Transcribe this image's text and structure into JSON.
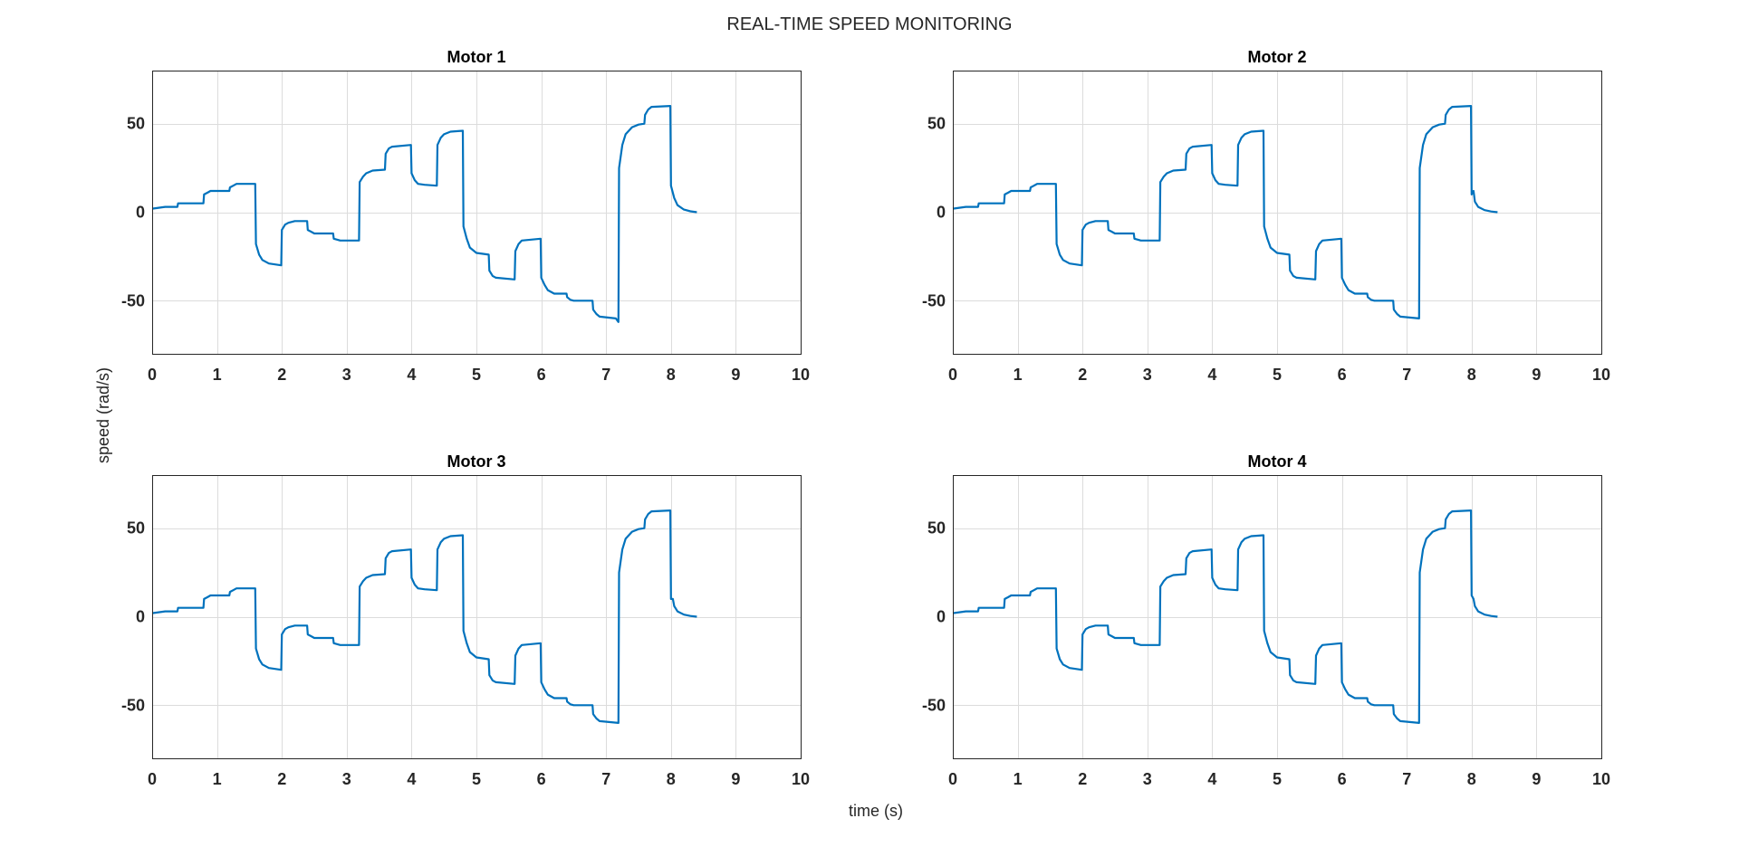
{
  "figure": {
    "title": "REAL-TIME SPEED MONITORING",
    "xlabel": "time (s)",
    "ylabel": "speed (rad/s)"
  },
  "colors": {
    "series": "#0072BD"
  },
  "chart_data": [
    {
      "type": "line",
      "title": "Motor 1",
      "xlim": [
        0,
        10
      ],
      "ylim": [
        -80,
        80
      ],
      "xticks": [
        0,
        1,
        2,
        3,
        4,
        5,
        6,
        7,
        8,
        9,
        10
      ],
      "yticks": [
        -50,
        0,
        50
      ],
      "xtick_labels": [
        "0",
        "1",
        "2",
        "3",
        "4",
        "5",
        "6",
        "7",
        "8",
        "9",
        "10"
      ],
      "ytick_labels": [
        "-50",
        "0",
        "50"
      ],
      "grid": true,
      "series": [
        {
          "x": [
            0,
            0.2,
            0.39,
            0.4,
            0.79,
            0.8,
            0.85,
            0.9,
            1.19,
            1.2,
            1.25,
            1.3,
            1.59,
            1.6,
            1.65,
            1.7,
            1.8,
            1.99,
            2.0,
            2.05,
            2.1,
            2.2,
            2.39,
            2.4,
            2.45,
            2.5,
            2.79,
            2.8,
            2.85,
            2.9,
            3.19,
            3.2,
            3.25,
            3.3,
            3.4,
            3.59,
            3.6,
            3.65,
            3.7,
            3.99,
            4.0,
            4.05,
            4.1,
            4.2,
            4.39,
            4.4,
            4.45,
            4.5,
            4.6,
            4.79,
            4.8,
            4.85,
            4.9,
            5.0,
            5.19,
            5.2,
            5.25,
            5.3,
            5.59,
            5.6,
            5.65,
            5.7,
            5.99,
            6.0,
            6.05,
            6.1,
            6.2,
            6.39,
            6.4,
            6.45,
            6.5,
            6.79,
            6.8,
            6.85,
            6.9,
            7.15,
            7.19,
            7.2,
            7.25,
            7.3,
            7.4,
            7.5,
            7.59,
            7.6,
            7.65,
            7.7,
            7.99,
            8.0,
            8.05,
            8.1,
            8.2,
            8.3,
            8.4
          ],
          "y": [
            2,
            3,
            3,
            5,
            5,
            10,
            11,
            12,
            12,
            14,
            15,
            16,
            16,
            -18,
            -24,
            -27,
            -29,
            -30,
            -10,
            -7,
            -6,
            -5,
            -5,
            -10,
            -11,
            -12,
            -12,
            -15,
            -15.5,
            -16,
            -16,
            17,
            20,
            22,
            23.5,
            24,
            33,
            36,
            37,
            38,
            22,
            18,
            16,
            15.5,
            15,
            38,
            42,
            44,
            45.5,
            46,
            -8,
            -15,
            -20,
            -23,
            -24,
            -33,
            -36,
            -37,
            -38,
            -22,
            -18,
            -16,
            -15,
            -37,
            -41,
            -44,
            -46,
            -46,
            -48,
            -49.5,
            -50,
            -50,
            -55,
            -57.5,
            -59,
            -60,
            -62,
            25,
            38,
            44,
            48,
            49.5,
            50,
            55,
            58,
            59.5,
            60,
            15,
            8,
            4,
            1.5,
            0.5,
            0
          ]
        }
      ]
    },
    {
      "type": "line",
      "title": "Motor 2",
      "xlim": [
        0,
        10
      ],
      "ylim": [
        -80,
        80
      ],
      "xticks": [
        0,
        1,
        2,
        3,
        4,
        5,
        6,
        7,
        8,
        9,
        10
      ],
      "yticks": [
        -50,
        0,
        50
      ],
      "xtick_labels": [
        "0",
        "1",
        "2",
        "3",
        "4",
        "5",
        "6",
        "7",
        "8",
        "9",
        "10"
      ],
      "ytick_labels": [
        "-50",
        "0",
        "50"
      ],
      "grid": true,
      "series": [
        {
          "x": [
            0,
            0.2,
            0.39,
            0.4,
            0.79,
            0.8,
            0.85,
            0.9,
            1.19,
            1.2,
            1.25,
            1.3,
            1.59,
            1.6,
            1.65,
            1.7,
            1.8,
            1.99,
            2.0,
            2.05,
            2.1,
            2.2,
            2.39,
            2.4,
            2.45,
            2.5,
            2.79,
            2.8,
            2.85,
            2.9,
            3.19,
            3.2,
            3.25,
            3.3,
            3.4,
            3.59,
            3.6,
            3.65,
            3.7,
            3.99,
            4.0,
            4.05,
            4.1,
            4.2,
            4.39,
            4.4,
            4.45,
            4.5,
            4.6,
            4.79,
            4.8,
            4.85,
            4.9,
            5.0,
            5.19,
            5.2,
            5.25,
            5.3,
            5.59,
            5.6,
            5.65,
            5.7,
            5.99,
            6.0,
            6.05,
            6.1,
            6.2,
            6.39,
            6.4,
            6.45,
            6.5,
            6.79,
            6.8,
            6.85,
            6.9,
            7.19,
            7.2,
            7.25,
            7.3,
            7.4,
            7.5,
            7.59,
            7.6,
            7.65,
            7.7,
            7.99,
            8.0,
            8.03,
            8.05,
            8.1,
            8.2,
            8.3,
            8.4
          ],
          "y": [
            2,
            3,
            3,
            5,
            5,
            10,
            11,
            12,
            12,
            14,
            15,
            16,
            16,
            -18,
            -24,
            -27,
            -29,
            -30,
            -10,
            -7,
            -6,
            -5,
            -5,
            -10,
            -11,
            -12,
            -12,
            -15,
            -15.5,
            -16,
            -16,
            17,
            20,
            22,
            23.5,
            24,
            33,
            36,
            37,
            38,
            22,
            18,
            16,
            15.5,
            15,
            38,
            42,
            44,
            45.5,
            46,
            -8,
            -15,
            -20,
            -23,
            -24,
            -33,
            -36,
            -37,
            -38,
            -22,
            -18,
            -16,
            -15,
            -37,
            -41,
            -44,
            -46,
            -46,
            -48,
            -49.5,
            -50,
            -50,
            -55,
            -57.5,
            -59,
            -60,
            25,
            38,
            44,
            48,
            49.5,
            50,
            55,
            58,
            59.5,
            60,
            10,
            12,
            6,
            3,
            1.2,
            0.4,
            0
          ]
        }
      ]
    },
    {
      "type": "line",
      "title": "Motor 3",
      "xlim": [
        0,
        10
      ],
      "ylim": [
        -80,
        80
      ],
      "xticks": [
        0,
        1,
        2,
        3,
        4,
        5,
        6,
        7,
        8,
        9,
        10
      ],
      "yticks": [
        -50,
        0,
        50
      ],
      "xtick_labels": [
        "0",
        "1",
        "2",
        "3",
        "4",
        "5",
        "6",
        "7",
        "8",
        "9",
        "10"
      ],
      "ytick_labels": [
        "-50",
        "0",
        "50"
      ],
      "grid": true,
      "series": [
        {
          "x": [
            0,
            0.2,
            0.39,
            0.4,
            0.79,
            0.8,
            0.85,
            0.9,
            1.19,
            1.2,
            1.25,
            1.3,
            1.59,
            1.6,
            1.65,
            1.7,
            1.8,
            1.99,
            2.0,
            2.05,
            2.1,
            2.2,
            2.39,
            2.4,
            2.45,
            2.5,
            2.79,
            2.8,
            2.85,
            2.9,
            3.19,
            3.2,
            3.25,
            3.3,
            3.4,
            3.59,
            3.6,
            3.65,
            3.7,
            3.99,
            4.0,
            4.05,
            4.1,
            4.2,
            4.39,
            4.4,
            4.45,
            4.5,
            4.6,
            4.79,
            4.8,
            4.85,
            4.9,
            5.0,
            5.19,
            5.2,
            5.25,
            5.3,
            5.59,
            5.6,
            5.65,
            5.7,
            5.99,
            6.0,
            6.05,
            6.1,
            6.2,
            6.39,
            6.4,
            6.45,
            6.5,
            6.79,
            6.8,
            6.85,
            6.9,
            7.19,
            7.2,
            7.25,
            7.3,
            7.4,
            7.5,
            7.59,
            7.6,
            7.65,
            7.7,
            7.99,
            8.0,
            8.03,
            8.05,
            8.1,
            8.2,
            8.3,
            8.4
          ],
          "y": [
            2,
            3,
            3,
            5,
            5,
            10,
            11,
            12,
            12,
            14,
            15,
            16,
            16,
            -18,
            -24,
            -27,
            -29,
            -30,
            -10,
            -7,
            -6,
            -5,
            -5,
            -10,
            -11,
            -12,
            -12,
            -15,
            -15.5,
            -16,
            -16,
            17,
            20,
            22,
            23.5,
            24,
            33,
            36,
            37,
            38,
            22,
            18,
            16,
            15.5,
            15,
            38,
            42,
            44,
            45.5,
            46,
            -8,
            -15,
            -20,
            -23,
            -24,
            -33,
            -36,
            -37,
            -38,
            -22,
            -18,
            -16,
            -15,
            -37,
            -41,
            -44,
            -46,
            -46,
            -48,
            -49.5,
            -50,
            -50,
            -55,
            -57.5,
            -59,
            -60,
            25,
            38,
            44,
            48,
            49.5,
            50,
            55,
            58,
            59.5,
            60,
            10,
            10,
            6,
            3,
            1.2,
            0.4,
            0
          ]
        }
      ]
    },
    {
      "type": "line",
      "title": "Motor 4",
      "xlim": [
        0,
        10
      ],
      "ylim": [
        -80,
        80
      ],
      "xticks": [
        0,
        1,
        2,
        3,
        4,
        5,
        6,
        7,
        8,
        9,
        10
      ],
      "yticks": [
        -50,
        0,
        50
      ],
      "xtick_labels": [
        "0",
        "1",
        "2",
        "3",
        "4",
        "5",
        "6",
        "7",
        "8",
        "9",
        "10"
      ],
      "ytick_labels": [
        "-50",
        "0",
        "50"
      ],
      "grid": true,
      "series": [
        {
          "x": [
            0,
            0.2,
            0.39,
            0.4,
            0.79,
            0.8,
            0.85,
            0.9,
            1.19,
            1.2,
            1.25,
            1.3,
            1.59,
            1.6,
            1.65,
            1.7,
            1.8,
            1.99,
            2.0,
            2.05,
            2.1,
            2.2,
            2.39,
            2.4,
            2.45,
            2.5,
            2.79,
            2.8,
            2.85,
            2.9,
            3.19,
            3.2,
            3.25,
            3.3,
            3.4,
            3.59,
            3.6,
            3.65,
            3.7,
            3.99,
            4.0,
            4.05,
            4.1,
            4.2,
            4.39,
            4.4,
            4.45,
            4.5,
            4.6,
            4.79,
            4.8,
            4.85,
            4.9,
            5.0,
            5.19,
            5.2,
            5.25,
            5.3,
            5.59,
            5.6,
            5.65,
            5.7,
            5.99,
            6.0,
            6.05,
            6.1,
            6.2,
            6.39,
            6.4,
            6.45,
            6.5,
            6.79,
            6.8,
            6.85,
            6.9,
            7.19,
            7.2,
            7.25,
            7.3,
            7.4,
            7.5,
            7.59,
            7.6,
            7.65,
            7.7,
            7.99,
            8.0,
            8.03,
            8.05,
            8.1,
            8.2,
            8.3,
            8.4
          ],
          "y": [
            2,
            3,
            3,
            5,
            5,
            10,
            11,
            12,
            12,
            14,
            15,
            16,
            16,
            -18,
            -24,
            -27,
            -29,
            -30,
            -10,
            -7,
            -6,
            -5,
            -5,
            -10,
            -11,
            -12,
            -12,
            -15,
            -15.5,
            -16,
            -16,
            17,
            20,
            22,
            23.5,
            24,
            33,
            36,
            37,
            38,
            22,
            18,
            16,
            15.5,
            15,
            38,
            42,
            44,
            45.5,
            46,
            -8,
            -15,
            -20,
            -23,
            -24,
            -33,
            -36,
            -37,
            -38,
            -22,
            -18,
            -16,
            -15,
            -37,
            -41,
            -44,
            -46,
            -46,
            -48,
            -49.5,
            -50,
            -50,
            -55,
            -57.5,
            -59,
            -60,
            25,
            38,
            44,
            48,
            49.5,
            50,
            55,
            58,
            59.5,
            60,
            12,
            10,
            6,
            3,
            1.2,
            0.4,
            0
          ]
        }
      ]
    }
  ]
}
